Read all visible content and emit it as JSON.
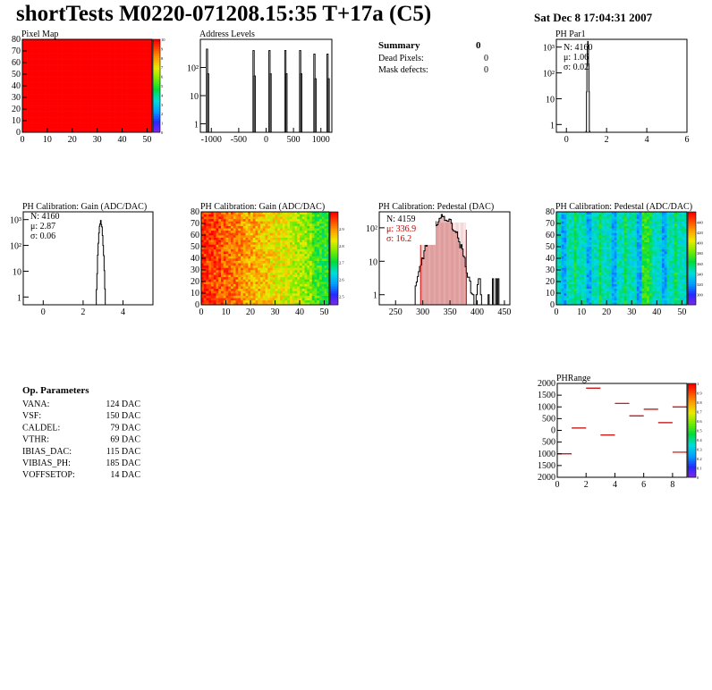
{
  "header": {
    "title": "shortTests M0220-071208.15:35 T+17a (C5)",
    "date": "Sat Dec  8 17:04:31 2007"
  },
  "summary": {
    "title": "Summary",
    "value": "0",
    "rows": [
      {
        "label": "Dead Pixels:",
        "value": "0"
      },
      {
        "label": "Mask defects:",
        "value": "0"
      }
    ]
  },
  "op_parameters": {
    "title": "Op. Parameters",
    "rows": [
      {
        "label": "VANA:",
        "value": "124 DAC"
      },
      {
        "label": "VSF:",
        "value": "150 DAC"
      },
      {
        "label": "CALDEL:",
        "value": "79 DAC"
      },
      {
        "label": "VTHR:",
        "value": "69 DAC"
      },
      {
        "label": "IBIAS_DAC:",
        "value": "115 DAC"
      },
      {
        "label": "VIBIAS_PH:",
        "value": "185 DAC"
      },
      {
        "label": "VOFFSETOP:",
        "value": "14 DAC"
      }
    ]
  },
  "chart_data": [
    {
      "id": "pixel-map",
      "type": "heatmap",
      "title": "Pixel Map",
      "xlim": [
        0,
        52
      ],
      "ylim": [
        0,
        80
      ],
      "xticks": [
        0,
        10,
        20,
        30,
        40,
        50
      ],
      "yticks": [
        0,
        10,
        20,
        30,
        40,
        50,
        60,
        70,
        80
      ],
      "fill_value": 10,
      "zlim": [
        0,
        10
      ],
      "zticks": [
        0,
        1,
        2,
        3,
        4,
        5,
        6,
        7,
        8,
        9,
        10
      ]
    },
    {
      "id": "address-levels",
      "type": "bar",
      "title": "Address Levels",
      "log_y": true,
      "xlim": [
        -1200,
        1200
      ],
      "ylim": [
        0.5,
        1000
      ],
      "xticks": [
        -1000,
        -500,
        0,
        500,
        1000
      ],
      "ytick_labels": [
        "1",
        "10",
        "10²"
      ],
      "yticks": [
        1,
        10,
        100
      ],
      "peaks": [
        {
          "x": -1080,
          "y": 450
        },
        {
          "x": -1060,
          "y": 60
        },
        {
          "x": -230,
          "y": 400
        },
        {
          "x": -210,
          "y": 50
        },
        {
          "x": 60,
          "y": 400
        },
        {
          "x": 80,
          "y": 60
        },
        {
          "x": 350,
          "y": 400
        },
        {
          "x": 370,
          "y": 60
        },
        {
          "x": 620,
          "y": 400
        },
        {
          "x": 640,
          "y": 60
        },
        {
          "x": 880,
          "y": 300
        },
        {
          "x": 900,
          "y": 40
        },
        {
          "x": 1120,
          "y": 300
        },
        {
          "x": 1140,
          "y": 40
        }
      ]
    },
    {
      "id": "ph-par1",
      "type": "bar",
      "title": "PH Par1",
      "log_y": true,
      "xlim": [
        -0.5,
        6
      ],
      "ylim": [
        0.5,
        2000
      ],
      "xticks": [
        0,
        2,
        4,
        6
      ],
      "yticks": [
        1,
        10,
        100,
        1000
      ],
      "ytick_labels": [
        "1",
        "10",
        "10²",
        "10³"
      ],
      "stats": {
        "N": "N: 4160",
        "mean": "μ: 1.06",
        "sigma": "σ: 0.02"
      },
      "mean": 1.06,
      "sigma": 0.02,
      "N": 4160
    },
    {
      "id": "gain-1d",
      "type": "bar",
      "title": "PH Calibration: Gain (ADC/DAC)",
      "log_y": true,
      "xlim": [
        -1,
        5.5
      ],
      "ylim": [
        0.5,
        2000
      ],
      "xticks": [
        0,
        2,
        4
      ],
      "yticks": [
        1,
        10,
        100,
        1000
      ],
      "ytick_labels": [
        "1",
        "10",
        "10²",
        "10³"
      ],
      "stats": {
        "N": "N: 4160",
        "mean": "μ: 2.87",
        "sigma": "σ: 0.06"
      },
      "mean": 2.87,
      "sigma": 0.06,
      "N": 4160
    },
    {
      "id": "gain-map",
      "type": "heatmap",
      "title": "PH Calibration: Gain (ADC/DAC)",
      "xlim": [
        0,
        52
      ],
      "ylim": [
        0,
        80
      ],
      "xticks": [
        0,
        10,
        20,
        30,
        40,
        50
      ],
      "yticks": [
        0,
        10,
        20,
        30,
        40,
        50,
        60,
        70,
        80
      ],
      "zlim": [
        2.45,
        3.0
      ],
      "zticks": [
        2.5,
        2.6,
        2.7,
        2.8,
        2.9
      ]
    },
    {
      "id": "pedestal-1d",
      "type": "bar",
      "title": "PH Calibration: Pedestal (DAC)",
      "log_y": true,
      "xlim": [
        220,
        460
      ],
      "ylim": [
        0.5,
        300
      ],
      "xticks": [
        250,
        300,
        350,
        400,
        450
      ],
      "yticks": [
        1,
        10,
        100
      ],
      "ytick_labels": [
        "1",
        "10",
        "10²"
      ],
      "stats": {
        "N": "N: 4159",
        "mean": "μ: 336.9",
        "sigma": "σ: 16.2"
      },
      "mean": 336.9,
      "sigma": 16.2,
      "N": 4159,
      "cut_lines": [
        296,
        380
      ]
    },
    {
      "id": "pedestal-map",
      "type": "heatmap",
      "title": "PH Calibration: Pedestal (ADC/DAC)",
      "xlim": [
        0,
        52
      ],
      "ylim": [
        0,
        80
      ],
      "xticks": [
        0,
        10,
        20,
        30,
        40,
        50
      ],
      "yticks": [
        0,
        10,
        20,
        30,
        40,
        50,
        60,
        70,
        80
      ],
      "zlim": [
        280,
        460
      ],
      "zticks": [
        300,
        320,
        340,
        360,
        380,
        400,
        420,
        440
      ]
    },
    {
      "id": "ph-range",
      "type": "scatter",
      "title": "PHRange",
      "xlim": [
        0,
        9
      ],
      "ylim": [
        -2000,
        2000
      ],
      "xticks": [
        0,
        2,
        4,
        6,
        8
      ],
      "yticks": [
        -2000,
        -1500,
        -1000,
        -500,
        0,
        500,
        1000,
        1500,
        2000
      ],
      "ytick_labels": [
        "2000",
        "1500",
        "1000",
        "500",
        "0",
        "500",
        "1000",
        "1500",
        "2000"
      ],
      "zlim": [
        0,
        1
      ],
      "zticks": [
        0,
        0.1,
        0.2,
        0.3,
        0.4,
        0.5,
        0.6,
        0.7,
        0.8,
        0.9,
        1
      ],
      "segments": [
        {
          "x": 0.5,
          "y": -1000
        },
        {
          "x": 1.5,
          "y": 100
        },
        {
          "x": 2.5,
          "y": 1800
        },
        {
          "x": 3.5,
          "y": -200
        },
        {
          "x": 4.5,
          "y": 1150
        },
        {
          "x": 5.5,
          "y": 620
        },
        {
          "x": 6.5,
          "y": 900
        },
        {
          "x": 7.5,
          "y": 330
        },
        {
          "x": 8.5,
          "y": 1000
        },
        {
          "x": 8.5,
          "y": -930
        }
      ]
    }
  ]
}
